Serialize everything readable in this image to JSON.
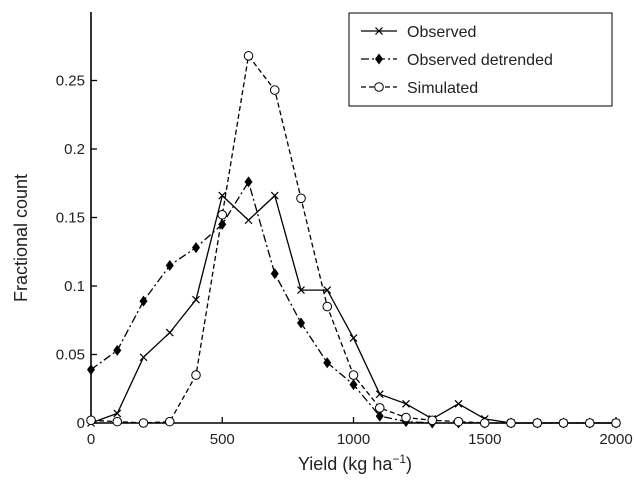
{
  "chart_data": {
    "type": "line",
    "title": "",
    "xlabel_main": "Yield (kg ha",
    "xlabel_sup": "−1",
    "xlabel_close": ")",
    "ylabel": "Fractional count",
    "xlim": [
      0,
      2000
    ],
    "ylim": [
      0,
      0.3
    ],
    "xticks": [
      0,
      500,
      1000,
      1500,
      2000
    ],
    "xtick_labels": [
      "0",
      "500",
      "1000",
      "1500",
      "2000"
    ],
    "yticks": [
      0,
      0.05,
      0.1,
      0.15,
      0.2,
      0.25
    ],
    "ytick_labels": [
      "0",
      "0.05",
      "0.1",
      "0.15",
      "0.2",
      "0.25"
    ],
    "grid": false,
    "legend_position": "top-right",
    "x": [
      0,
      100,
      200,
      300,
      400,
      500,
      600,
      700,
      800,
      900,
      1000,
      1100,
      1200,
      1300,
      1400,
      1500,
      1600,
      1700,
      1800,
      1900,
      2000
    ],
    "series": [
      {
        "name": "Observed",
        "style": "solid",
        "marker": "x",
        "values": [
          0.0,
          0.007,
          0.048,
          0.066,
          0.09,
          0.166,
          0.148,
          0.166,
          0.097,
          0.097,
          0.062,
          0.021,
          0.014,
          0.003,
          0.014,
          0.003,
          0.0,
          0.0,
          0.0,
          0.0,
          0.0
        ]
      },
      {
        "name": "Observed detrended",
        "style": "dashdot",
        "marker": "diamond",
        "values": [
          0.039,
          0.053,
          0.089,
          0.115,
          0.128,
          0.145,
          0.176,
          0.109,
          0.073,
          0.044,
          0.028,
          0.005,
          0.001,
          0.0,
          0.0,
          0.0,
          0.0,
          0.0,
          0.0,
          0.0,
          0.0
        ]
      },
      {
        "name": "Simulated",
        "style": "dashed",
        "marker": "circle",
        "values": [
          0.002,
          0.001,
          0.0,
          0.001,
          0.035,
          0.152,
          0.268,
          0.243,
          0.164,
          0.085,
          0.035,
          0.011,
          0.004,
          0.002,
          0.001,
          0.0,
          0.0,
          0.0,
          0.0,
          0.0,
          0.0
        ]
      }
    ]
  }
}
